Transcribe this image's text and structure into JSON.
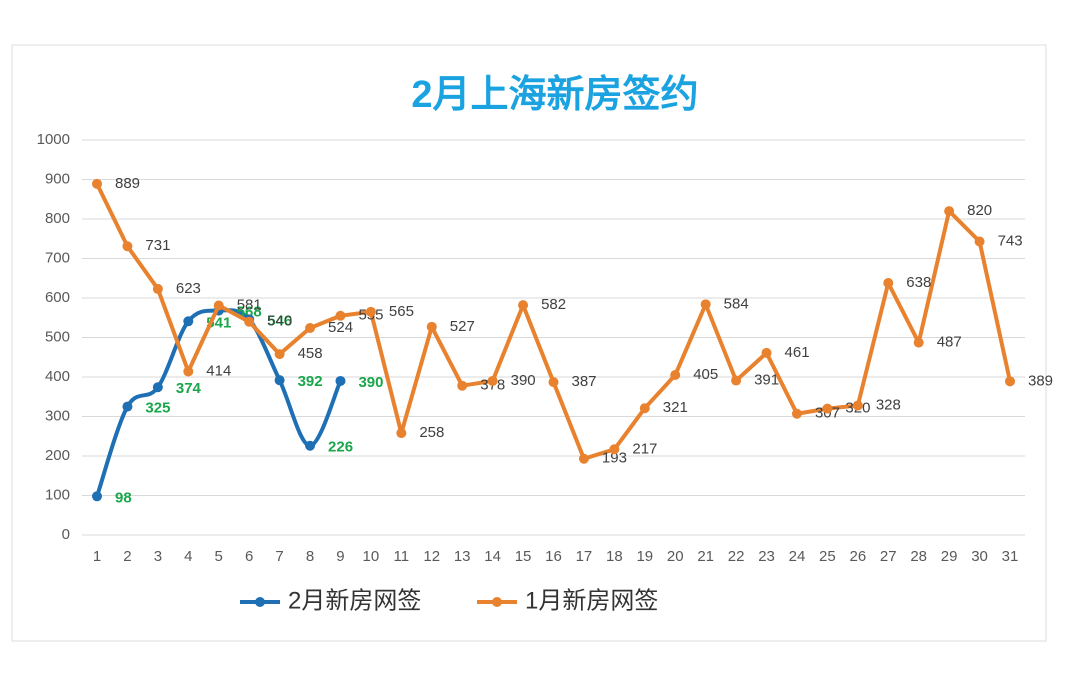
{
  "chart_data": {
    "type": "line",
    "title": "2月上海新房签约",
    "x": [
      1,
      2,
      3,
      4,
      5,
      6,
      7,
      8,
      9,
      10,
      11,
      12,
      13,
      14,
      15,
      16,
      17,
      18,
      19,
      20,
      21,
      22,
      23,
      24,
      25,
      26,
      27,
      28,
      29,
      30,
      31
    ],
    "xlim": [
      1,
      31
    ],
    "xticks": [
      1,
      2,
      3,
      4,
      5,
      6,
      7,
      8,
      9,
      10,
      11,
      12,
      13,
      14,
      15,
      16,
      17,
      18,
      19,
      20,
      21,
      22,
      23,
      24,
      25,
      26,
      27,
      28,
      29,
      30,
      31
    ],
    "ylim": [
      0,
      1000
    ],
    "yticks": [
      0,
      100,
      200,
      300,
      400,
      500,
      600,
      700,
      800,
      900,
      1000
    ],
    "grid": true,
    "legend": "bottom",
    "series": [
      {
        "name": "2月新房网签",
        "color": "#1f6fb4",
        "smooth": true,
        "label_color": "#1aa64a",
        "values": [
          98,
          325,
          374,
          541,
          568,
          546,
          392,
          226,
          390,
          null,
          null,
          null,
          null,
          null,
          null,
          null,
          null,
          null,
          null,
          null,
          null,
          null,
          null,
          null,
          null,
          null,
          null,
          null,
          null,
          null,
          null
        ]
      },
      {
        "name": "1月新房网签",
        "color": "#e8822e",
        "smooth": false,
        "label_color": "#404040",
        "values": [
          889,
          731,
          623,
          414,
          581,
          540,
          458,
          524,
          555,
          565,
          258,
          527,
          378,
          390,
          582,
          387,
          193,
          217,
          321,
          405,
          584,
          391,
          461,
          307,
          320,
          328,
          638,
          487,
          820,
          743,
          389
        ]
      }
    ]
  }
}
